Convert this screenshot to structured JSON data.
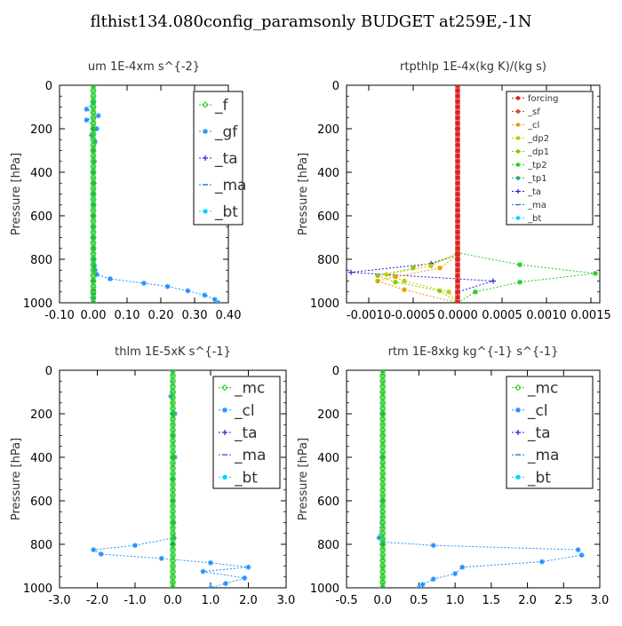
{
  "page_title": "flthist134.080config_paramsonly  BUDGET at259E,-1N",
  "chart_data": [
    {
      "type": "line",
      "title": "um   1E-4xm s^{-2}",
      "ylabel": "Pressure [hPa]",
      "xlim": [
        -0.1,
        0.4
      ],
      "ylim": [
        1000,
        0
      ],
      "xticks": [
        "-0.10",
        "0.00",
        "0.10",
        "0.20",
        "0.30",
        "0.40"
      ],
      "xtick_values": [
        -0.1,
        0.0,
        0.1,
        0.2,
        0.3,
        0.4
      ],
      "yticks": [
        0,
        200,
        400,
        600,
        800,
        1000
      ],
      "legend_position": "top-right",
      "series": [
        {
          "name": "_f",
          "color": "#22cc22",
          "marker": "diamond",
          "x": [
            0,
            0,
            0,
            0,
            0,
            0,
            0,
            0,
            0,
            0,
            0,
            0
          ],
          "y": [
            0,
            100,
            200,
            300,
            400,
            500,
            600,
            700,
            800,
            900,
            950,
            1000
          ]
        },
        {
          "name": "_gf",
          "color": "#1e90ff",
          "marker": "star",
          "x": [
            0.0,
            0.0,
            -0.02,
            0.015,
            -0.02,
            0.01,
            -0.005,
            0.005,
            0.0,
            0.003,
            0.0,
            0.002,
            0.0,
            0.001,
            0.0,
            0.0,
            0.0,
            0.001,
            0.002,
            0.003,
            0.005,
            0.01,
            0.05,
            0.15,
            0.22,
            0.28,
            0.33,
            0.36,
            0.37
          ],
          "y": [
            0,
            80,
            110,
            140,
            160,
            200,
            230,
            260,
            300,
            350,
            400,
            450,
            500,
            550,
            600,
            650,
            700,
            750,
            800,
            830,
            850,
            870,
            890,
            910,
            925,
            945,
            965,
            985,
            1000
          ]
        },
        {
          "name": "_ta",
          "color": "#2222cc",
          "marker": "plus",
          "x": [
            0,
            0,
            0,
            0,
            0,
            0,
            0,
            0,
            0,
            0
          ],
          "y": [
            0,
            200,
            400,
            600,
            800,
            900,
            940,
            960,
            980,
            1000
          ]
        },
        {
          "name": "_ma",
          "color": "#2e6fdf",
          "marker": "dash",
          "x": [
            0,
            0,
            0,
            0,
            0,
            0
          ],
          "y": [
            0,
            200,
            400,
            600,
            800,
            1000
          ]
        },
        {
          "name": "_bt",
          "color": "#00d5ff",
          "marker": "dot",
          "x": [
            0,
            0,
            0,
            0,
            0,
            0
          ],
          "y": [
            0,
            200,
            400,
            600,
            800,
            1000
          ]
        }
      ]
    },
    {
      "type": "line",
      "title": "rtpthlp   1E-4x(kg K)/(kg s)",
      "ylabel": "Pressure [hPa]",
      "xlim": [
        -0.00125,
        0.0016
      ],
      "ylim": [
        1000,
        0
      ],
      "xticks": [
        "-0.0010",
        "-0.0005",
        "0.0000",
        "0.0005",
        "0.0010",
        "0.0015"
      ],
      "xtick_values": [
        -0.001,
        -0.0005,
        0.0,
        0.0005,
        0.001,
        0.0015
      ],
      "yticks": [
        0,
        200,
        400,
        600,
        800,
        1000
      ],
      "legend_position": "top-right",
      "series": [
        {
          "name": "forcing",
          "color": "#dd2222",
          "marker": "dot",
          "x": [
            0,
            0,
            0,
            0,
            0,
            0
          ],
          "y": [
            0,
            200,
            400,
            600,
            800,
            1000
          ]
        },
        {
          "name": "_sf",
          "color": "#dd4422",
          "marker": "star",
          "x": [
            0,
            0,
            0,
            0,
            0,
            0
          ],
          "y": [
            0,
            200,
            400,
            600,
            800,
            1000
          ]
        },
        {
          "name": "_cl",
          "color": "#e6a000",
          "marker": "dot",
          "x": [
            0,
            0,
            -0.0002,
            -0.0007,
            -0.0009,
            -0.0006,
            0
          ],
          "y": [
            0,
            780,
            840,
            880,
            900,
            940,
            1000
          ]
        },
        {
          "name": "_dp2",
          "color": "#c8c800",
          "marker": "dot",
          "x": [
            0,
            0,
            -0.0003,
            -0.0008,
            -0.0006,
            -0.0001,
            0
          ],
          "y": [
            0,
            770,
            830,
            870,
            900,
            950,
            1000
          ]
        },
        {
          "name": "_dp1",
          "color": "#88cc00",
          "marker": "dot",
          "x": [
            0,
            0,
            -0.0005,
            -0.0009,
            -0.0007,
            -0.0002,
            0
          ],
          "y": [
            0,
            780,
            840,
            875,
            905,
            945,
            1000
          ]
        },
        {
          "name": "_tp2",
          "color": "#22cc22",
          "marker": "star",
          "x": [
            0,
            0,
            0.0007,
            0.00155,
            0.0007,
            0.0002,
            0
          ],
          "y": [
            0,
            770,
            825,
            865,
            905,
            950,
            1000
          ]
        },
        {
          "name": "_tp1",
          "color": "#22aa88",
          "marker": "dot",
          "x": [
            0,
            0,
            0,
            0,
            0,
            0
          ],
          "y": [
            0,
            200,
            400,
            600,
            800,
            1000
          ]
        },
        {
          "name": "_ta",
          "color": "#2222cc",
          "marker": "plus",
          "x": [
            0,
            0,
            -0.0003,
            -0.0012,
            0.0004,
            0,
            0
          ],
          "y": [
            0,
            780,
            820,
            860,
            900,
            950,
            1000
          ]
        },
        {
          "name": "_ma",
          "color": "#2e6fdf",
          "marker": "dash",
          "x": [
            0,
            0,
            0,
            0,
            0,
            0
          ],
          "y": [
            0,
            200,
            400,
            600,
            800,
            1000
          ]
        },
        {
          "name": "_bt",
          "color": "#00d5ff",
          "marker": "dot",
          "x": [
            0,
            0,
            0,
            0,
            0,
            0
          ],
          "y": [
            0,
            200,
            400,
            600,
            800,
            1000
          ]
        }
      ]
    },
    {
      "type": "line",
      "title": "thlm   1E-5xK s^{-1}",
      "ylabel": "Pressure [hPa]",
      "xlim": [
        -3.0,
        3.0
      ],
      "ylim": [
        1000,
        0
      ],
      "xticks": [
        "-3.0",
        "-2.0",
        "-1.0",
        "0.0",
        "1.0",
        "2.0",
        "3.0"
      ],
      "xtick_values": [
        -3.0,
        -2.0,
        -1.0,
        0.0,
        1.0,
        2.0,
        3.0
      ],
      "yticks": [
        0,
        200,
        400,
        600,
        800,
        1000
      ],
      "legend_position": "top-right",
      "series": [
        {
          "name": "_mc",
          "color": "#22cc22",
          "marker": "diamond",
          "x": [
            0,
            0,
            0,
            0,
            0,
            0,
            0,
            0,
            0,
            0,
            0,
            0
          ],
          "y": [
            0,
            100,
            200,
            300,
            400,
            500,
            600,
            700,
            800,
            900,
            950,
            1000
          ]
        },
        {
          "name": "_cl",
          "color": "#1e90ff",
          "marker": "star",
          "x": [
            0.0,
            -0.05,
            0.05,
            0.0,
            0.05,
            0.0,
            0.0,
            0.02,
            0.03,
            -1.0,
            -2.1,
            -1.9,
            -0.3,
            1.0,
            2.0,
            0.8,
            1.9,
            1.4,
            1.0
          ],
          "y": [
            0,
            120,
            200,
            300,
            400,
            500,
            600,
            700,
            770,
            805,
            825,
            845,
            865,
            885,
            905,
            925,
            955,
            980,
            1000
          ]
        },
        {
          "name": "_ta",
          "color": "#2222cc",
          "marker": "plus",
          "x": [
            0,
            0,
            0,
            0,
            0,
            0
          ],
          "y": [
            0,
            200,
            400,
            600,
            800,
            1000
          ]
        },
        {
          "name": "_ma",
          "color": "#2e6fdf",
          "marker": "dash",
          "x": [
            0,
            0,
            0,
            0,
            0,
            0
          ],
          "y": [
            0,
            200,
            400,
            600,
            800,
            1000
          ]
        },
        {
          "name": "_bt",
          "color": "#00d5ff",
          "marker": "dot",
          "x": [
            0,
            0,
            0,
            0,
            0,
            0
          ],
          "y": [
            0,
            200,
            400,
            600,
            800,
            1000
          ]
        }
      ]
    },
    {
      "type": "line",
      "title": "rtm   1E-8xkg kg^{-1} s^{-1}",
      "ylabel": "Pressure [hPa]",
      "xlim": [
        -0.5,
        3.0
      ],
      "ylim": [
        1000,
        0
      ],
      "xticks": [
        "-0.5",
        "0.0",
        "0.5",
        "1.0",
        "1.5",
        "2.0",
        "2.5",
        "3.0"
      ],
      "xtick_values": [
        -0.5,
        0.0,
        0.5,
        1.0,
        1.5,
        2.0,
        2.5,
        3.0
      ],
      "yticks": [
        0,
        200,
        400,
        600,
        800,
        1000
      ],
      "legend_position": "top-right",
      "series": [
        {
          "name": "_mc",
          "color": "#22cc22",
          "marker": "diamond",
          "x": [
            0,
            0,
            0,
            0,
            0,
            0,
            0,
            0,
            0,
            0,
            0,
            0
          ],
          "y": [
            0,
            100,
            200,
            300,
            400,
            500,
            600,
            700,
            800,
            900,
            950,
            1000
          ]
        },
        {
          "name": "_cl",
          "color": "#1e90ff",
          "marker": "star",
          "x": [
            0.0,
            0.0,
            0.0,
            0.0,
            -0.05,
            0.0,
            0.7,
            2.7,
            2.75,
            2.2,
            1.1,
            1.0,
            0.7,
            0.55,
            0.5
          ],
          "y": [
            0,
            200,
            400,
            600,
            770,
            790,
            805,
            825,
            850,
            880,
            905,
            935,
            960,
            985,
            1000
          ]
        },
        {
          "name": "_ta",
          "color": "#2222cc",
          "marker": "plus",
          "x": [
            0,
            0,
            0,
            0,
            0,
            0
          ],
          "y": [
            0,
            200,
            400,
            600,
            800,
            1000
          ]
        },
        {
          "name": "_ma",
          "color": "#2e6fdf",
          "marker": "dash",
          "x": [
            0,
            0,
            0,
            0,
            0,
            0
          ],
          "y": [
            0,
            200,
            400,
            600,
            800,
            1000
          ]
        },
        {
          "name": "_bt",
          "color": "#00d5ff",
          "marker": "dot",
          "x": [
            0,
            0,
            0,
            0,
            0,
            0
          ],
          "y": [
            0,
            200,
            400,
            600,
            800,
            1000
          ]
        }
      ]
    }
  ]
}
